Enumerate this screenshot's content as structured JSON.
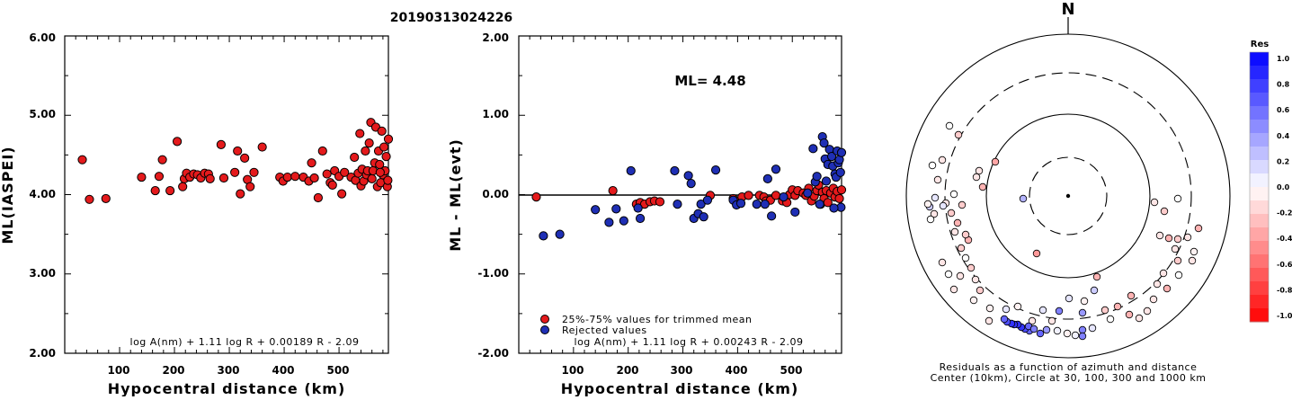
{
  "event_title": "20190313024226",
  "charts": {
    "left": {
      "type": "scatter",
      "ylabel": "ML(IASPEI)",
      "xlabel": "Hypocentral distance (km)",
      "yticks": [
        "2.00",
        "3.00",
        "4.00",
        "5.00",
        "6.00"
      ],
      "xticks": [
        "100",
        "200",
        "300",
        "400",
        "500"
      ],
      "formula": "log A(nm) + 1.11 log R + 0.00189 R - 2.09"
    },
    "middle": {
      "type": "scatter",
      "ylabel": "ML - ML(evt)",
      "xlabel": "Hypocentral distance (km)",
      "yticks": [
        "-2.00",
        "-1.00",
        "0.00",
        "1.00",
        "2.00"
      ],
      "xticks": [
        "100",
        "200",
        "300",
        "400",
        "500"
      ],
      "ml_text": "ML= 4.48",
      "legend": [
        "25%-75% values for trimmed mean",
        "Rejected values"
      ],
      "formula": "log A(nm) + 1.11 log R + 0.00243 R - 2.09"
    },
    "polar": {
      "north": "N",
      "caption1": "Residuals as a function of azimuth and distance",
      "caption2": "Center (10km), Circle at 30, 100, 300 and 1000 km"
    },
    "colorbar": {
      "title": "Res",
      "labels": [
        "1.0",
        "0.8",
        "0.6",
        "0.4",
        "0.2",
        "0.0",
        "-0.2",
        "-0.4",
        "-0.6",
        "-0.8",
        "-1.0"
      ]
    }
  },
  "chart_data": [
    {
      "type": "scatter",
      "xlabel": "Hypocentral distance (km)",
      "ylabel": "ML(IASPEI)",
      "xlim": [
        0,
        590
      ],
      "ylim": [
        2.0,
        6.0
      ],
      "points": [
        [
          32,
          4.44
        ],
        [
          45,
          3.94
        ],
        [
          75,
          3.95
        ],
        [
          140,
          4.22
        ],
        [
          165,
          4.05
        ],
        [
          172,
          4.23
        ],
        [
          178,
          4.44
        ],
        [
          192,
          4.05
        ],
        [
          205,
          4.67
        ],
        [
          215,
          4.1
        ],
        [
          218,
          4.2
        ],
        [
          222,
          4.27
        ],
        [
          228,
          4.22
        ],
        [
          235,
          4.26
        ],
        [
          242,
          4.25
        ],
        [
          248,
          4.21
        ],
        [
          255,
          4.27
        ],
        [
          262,
          4.26
        ],
        [
          265,
          4.2
        ],
        [
          285,
          4.63
        ],
        [
          290,
          4.21
        ],
        [
          310,
          4.28
        ],
        [
          315,
          4.55
        ],
        [
          320,
          4.01
        ],
        [
          328,
          4.46
        ],
        [
          333,
          4.19
        ],
        [
          338,
          4.1
        ],
        [
          345,
          4.28
        ],
        [
          360,
          4.6
        ],
        [
          392,
          4.22
        ],
        [
          398,
          4.17
        ],
        [
          406,
          4.22
        ],
        [
          420,
          4.23
        ],
        [
          435,
          4.22
        ],
        [
          445,
          4.17
        ],
        [
          450,
          4.4
        ],
        [
          455,
          4.21
        ],
        [
          462,
          3.96
        ],
        [
          470,
          4.55
        ],
        [
          478,
          4.26
        ],
        [
          484,
          4.15
        ],
        [
          488,
          4.12
        ],
        [
          492,
          4.3
        ],
        [
          500,
          4.23
        ],
        [
          505,
          4.01
        ],
        [
          510,
          4.28
        ],
        [
          522,
          4.22
        ],
        [
          528,
          4.47
        ],
        [
          530,
          4.18
        ],
        [
          535,
          4.27
        ],
        [
          538,
          4.77
        ],
        [
          540,
          4.11
        ],
        [
          542,
          4.32
        ],
        [
          545,
          4.17
        ],
        [
          548,
          4.55
        ],
        [
          550,
          4.25
        ],
        [
          552,
          4.3
        ],
        [
          555,
          4.65
        ],
        [
          558,
          4.91
        ],
        [
          560,
          4.2
        ],
        [
          562,
          4.3
        ],
        [
          565,
          4.4
        ],
        [
          567,
          4.85
        ],
        [
          570,
          4.1
        ],
        [
          572,
          4.55
        ],
        [
          574,
          4.38
        ],
        [
          576,
          4.15
        ],
        [
          578,
          4.8
        ],
        [
          580,
          4.25
        ],
        [
          582,
          4.6
        ],
        [
          584,
          4.3
        ],
        [
          586,
          4.48
        ],
        [
          588,
          4.1
        ],
        [
          575,
          4.28
        ],
        [
          590,
          4.7
        ],
        [
          589,
          4.18
        ]
      ]
    },
    {
      "type": "scatter",
      "xlabel": "Hypocentral distance (km)",
      "ylabel": "ML - ML(evt)",
      "xlim": [
        0,
        590
      ],
      "ylim": [
        -2.0,
        2.0
      ],
      "hline": 0.0,
      "series": [
        {
          "name": "25%-75% values for trimmed mean",
          "color": "#e41a1c",
          "points": [
            [
              32,
              -0.03
            ],
            [
              172,
              0.05
            ],
            [
              215,
              -0.12
            ],
            [
              222,
              -0.1
            ],
            [
              230,
              -0.12
            ],
            [
              240,
              -0.09
            ],
            [
              248,
              -0.08
            ],
            [
              258,
              -0.09
            ],
            [
              350,
              -0.01
            ],
            [
              392,
              -0.05
            ],
            [
              398,
              -0.08
            ],
            [
              408,
              -0.03
            ],
            [
              420,
              -0.01
            ],
            [
              440,
              -0.01
            ],
            [
              448,
              -0.03
            ],
            [
              452,
              -0.08
            ],
            [
              460,
              -0.07
            ],
            [
              470,
              -0.01
            ],
            [
              482,
              -0.08
            ],
            [
              490,
              -0.1
            ],
            [
              495,
              0.0
            ],
            [
              500,
              0.06
            ],
            [
              505,
              -0.01
            ],
            [
              510,
              0.05
            ],
            [
              520,
              0.02
            ],
            [
              525,
              -0.01
            ],
            [
              530,
              0.08
            ],
            [
              535,
              -0.08
            ],
            [
              540,
              -0.02
            ],
            [
              545,
              0.05
            ],
            [
              548,
              0.12
            ],
            [
              552,
              -0.12
            ],
            [
              555,
              0.03
            ],
            [
              558,
              -0.05
            ],
            [
              562,
              0.05
            ],
            [
              565,
              -0.1
            ],
            [
              570,
              0.02
            ],
            [
              575,
              0.08
            ],
            [
              578,
              -0.03
            ],
            [
              582,
              0.04
            ],
            [
              586,
              -0.05
            ],
            [
              590,
              0.06
            ]
          ]
        },
        {
          "name": "Rejected values",
          "color": "#1f2fb5",
          "points": [
            [
              45,
              -0.52
            ],
            [
              75,
              -0.5
            ],
            [
              140,
              -0.19
            ],
            [
              165,
              -0.35
            ],
            [
              178,
              -0.18
            ],
            [
              192,
              -0.33
            ],
            [
              205,
              0.3
            ],
            [
              218,
              -0.17
            ],
            [
              222,
              -0.3
            ],
            [
              285,
              0.3
            ],
            [
              290,
              -0.12
            ],
            [
              310,
              0.24
            ],
            [
              315,
              0.14
            ],
            [
              320,
              -0.3
            ],
            [
              328,
              -0.24
            ],
            [
              333,
              -0.12
            ],
            [
              338,
              -0.28
            ],
            [
              345,
              -0.07
            ],
            [
              360,
              0.31
            ],
            [
              392,
              -0.07
            ],
            [
              398,
              -0.13
            ],
            [
              406,
              -0.11
            ],
            [
              435,
              -0.12
            ],
            [
              450,
              -0.12
            ],
            [
              455,
              0.2
            ],
            [
              462,
              -0.27
            ],
            [
              470,
              0.32
            ],
            [
              484,
              -0.03
            ],
            [
              505,
              -0.22
            ],
            [
              528,
              0.02
            ],
            [
              538,
              0.58
            ],
            [
              542,
              0.16
            ],
            [
              545,
              0.23
            ],
            [
              550,
              -0.12
            ],
            [
              555,
              0.73
            ],
            [
              558,
              0.65
            ],
            [
              560,
              0.45
            ],
            [
              562,
              0.17
            ],
            [
              565,
              0.38
            ],
            [
              568,
              0.57
            ],
            [
              572,
              0.48
            ],
            [
              574,
              0.36
            ],
            [
              578,
              0.26
            ],
            [
              580,
              0.22
            ],
            [
              582,
              0.55
            ],
            [
              584,
              0.4
            ],
            [
              586,
              0.44
            ],
            [
              588,
              0.28
            ],
            [
              590,
              0.53
            ],
            [
              589,
              -0.16
            ],
            [
              576,
              -0.17
            ]
          ]
        }
      ]
    },
    {
      "type": "scatter",
      "title": "Residuals as a function of azimuth and distance",
      "color_scale": {
        "min": -1.0,
        "max": 1.0
      },
      "distance_rings_km": [
        30,
        100,
        300,
        1000
      ],
      "points_xy": [
        [
          1138,
          221,
          0.3
        ],
        [
          1107,
          180,
          -0.35
        ],
        [
          1153,
          282,
          -0.4
        ],
        [
          1220,
          308,
          -0.3
        ],
        [
          1229,
          345,
          -0.2
        ],
        [
          1160,
          345,
          0.1
        ],
        [
          1132,
          341,
          -0.05
        ],
        [
          1119,
          344,
          0.1
        ],
        [
          1148,
          357,
          -0.1
        ],
        [
          1170,
          357,
          -0.1
        ],
        [
          1178,
          346,
          0.5
        ],
        [
          1204,
          348,
          0.4
        ],
        [
          1206,
          335,
          -0.05
        ],
        [
          1217,
          323,
          0.2
        ],
        [
          1189,
          332,
          0.1
        ],
        [
          1204,
          367,
          0.5
        ],
        [
          1204,
          374,
          0.5
        ],
        [
          1215,
          365,
          0.1
        ],
        [
          1196,
          373,
          0.05
        ],
        [
          1187,
          371,
          -0.05
        ],
        [
          1176,
          368,
          0.05
        ],
        [
          1164,
          367,
          0.4
        ],
        [
          1157,
          371,
          0.6
        ],
        [
          1145,
          368,
          0.6
        ],
        [
          1140,
          366,
          0.7
        ],
        [
          1136,
          364,
          0.8
        ],
        [
          1132,
          361,
          0.8
        ],
        [
          1128,
          361,
          0.8
        ],
        [
          1125,
          360,
          0.8
        ],
        [
          1120,
          358,
          0.7
        ],
        [
          1117,
          355,
          0.6
        ],
        [
          1144,
          363,
          0.6
        ],
        [
          1150,
          366,
          0.5
        ],
        [
          1101,
          343,
          -0.05
        ],
        [
          1083,
          334,
          -0.05
        ],
        [
          1090,
          323,
          -0.2
        ],
        [
          1085,
          311,
          -0.1
        ],
        [
          1080,
          298,
          -0.2
        ],
        [
          1074,
          287,
          0.0
        ],
        [
          1069,
          276,
          -0.2
        ],
        [
          1077,
          267,
          -0.3
        ],
        [
          1074,
          261,
          -0.2
        ],
        [
          1062,
          258,
          -0.1
        ],
        [
          1065,
          248,
          -0.3
        ],
        [
          1058,
          237,
          -0.2
        ],
        [
          1052,
          226,
          -0.1
        ],
        [
          1049,
          229,
          0.1
        ],
        [
          1040,
          220,
          0.1
        ],
        [
          1039,
          238,
          -0.1
        ],
        [
          1035,
          244,
          0.0
        ],
        [
          1034,
          230,
          0.2
        ],
        [
          1032,
          227,
          -0.05
        ],
        [
          1061,
          216,
          0.0
        ],
        [
          1070,
          228,
          -0.2
        ],
        [
          1043,
          200,
          -0.1
        ],
        [
          1037,
          184,
          0.0
        ],
        [
          1048,
          178,
          -0.1
        ],
        [
          1056,
          140,
          0.0
        ],
        [
          1066,
          150,
          -0.2
        ],
        [
          1089,
          190,
          -0.1
        ],
        [
          1086,
          197,
          -0.1
        ],
        [
          1093,
          208,
          -0.3
        ],
        [
          1048,
          292,
          -0.1
        ],
        [
          1055,
          305,
          0.0
        ],
        [
          1068,
          307,
          -0.1
        ],
        [
          1061,
          322,
          -0.1
        ],
        [
          1100,
          357,
          -0.1
        ],
        [
          1284,
          225,
          -0.1
        ],
        [
          1295,
          235,
          -0.2
        ],
        [
          1310,
          221,
          0.0
        ],
        [
          1290,
          262,
          -0.1
        ],
        [
          1300,
          265,
          -0.3
        ],
        [
          1310,
          266,
          -0.2
        ],
        [
          1321,
          264,
          -0.1
        ],
        [
          1328,
          280,
          -0.05
        ],
        [
          1307,
          277,
          -0.1
        ],
        [
          1310,
          290,
          -0.2
        ],
        [
          1326,
          290,
          -0.1
        ],
        [
          1333,
          254,
          -0.3
        ],
        [
          1294,
          304,
          -0.1
        ],
        [
          1311,
          306,
          0.0
        ],
        [
          1287,
          316,
          -0.1
        ],
        [
          1298,
          321,
          -0.3
        ],
        [
          1283,
          333,
          -0.1
        ],
        [
          1276,
          346,
          -0.1
        ],
        [
          1267,
          354,
          -0.1
        ],
        [
          1256,
          350,
          -0.3
        ],
        [
          1243,
          341,
          -0.3
        ],
        [
          1235,
          355,
          0.0
        ],
        [
          1258,
          329,
          -0.3
        ]
      ]
    }
  ]
}
